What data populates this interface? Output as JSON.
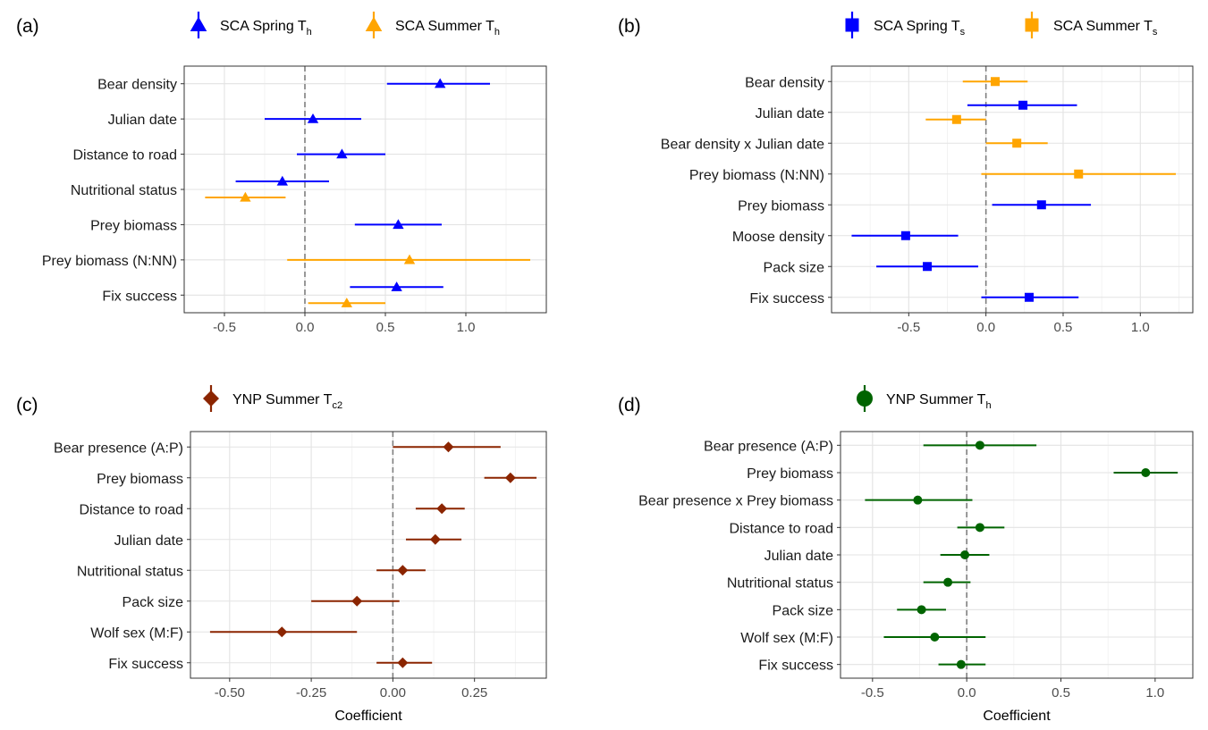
{
  "chart_data": [
    {
      "panel": "(a)",
      "type": "scatter",
      "legend_position": "top",
      "legend": [
        {
          "name": "SCA Spring T",
          "sub": "h",
          "color": "#0000FF",
          "marker": "triangle"
        },
        {
          "name": "SCA Summer T",
          "sub": "h",
          "color": "#FFA500",
          "marker": "triangle"
        }
      ],
      "categories": [
        "Bear density",
        "Julian date",
        "Distance to road",
        "Nutritional status",
        "Prey biomass",
        "Prey biomass (N:NN)",
        "Fix success"
      ],
      "xlim": [
        -0.75,
        1.5
      ],
      "xticks": [
        -0.5,
        0.0,
        0.5,
        1.0
      ],
      "xtick_labels": [
        "-0.5",
        "0.0",
        "0.5",
        "1.0"
      ],
      "xlabel": "",
      "grid": true,
      "zero_line": true,
      "points": [
        {
          "category": "Bear density",
          "series": 0,
          "estimate": 0.84,
          "lower": 0.51,
          "upper": 1.15
        },
        {
          "category": "Julian date",
          "series": 0,
          "estimate": 0.05,
          "lower": -0.25,
          "upper": 0.35
        },
        {
          "category": "Distance to road",
          "series": 0,
          "estimate": 0.23,
          "lower": -0.05,
          "upper": 0.5
        },
        {
          "category": "Nutritional status",
          "series": 0,
          "estimate": -0.14,
          "lower": -0.43,
          "upper": 0.15
        },
        {
          "category": "Nutritional status",
          "series": 1,
          "estimate": -0.37,
          "lower": -0.62,
          "upper": -0.12
        },
        {
          "category": "Prey biomass",
          "series": 0,
          "estimate": 0.58,
          "lower": 0.31,
          "upper": 0.85
        },
        {
          "category": "Prey biomass (N:NN)",
          "series": 1,
          "estimate": 0.65,
          "lower": -0.11,
          "upper": 1.4
        },
        {
          "category": "Fix success",
          "series": 0,
          "estimate": 0.57,
          "lower": 0.28,
          "upper": 0.86
        },
        {
          "category": "Fix success",
          "series": 1,
          "estimate": 0.26,
          "lower": 0.02,
          "upper": 0.5
        }
      ]
    },
    {
      "panel": "(b)",
      "type": "scatter",
      "legend_position": "top",
      "legend": [
        {
          "name": "SCA Spring T",
          "sub": "s",
          "color": "#0000FF",
          "marker": "square"
        },
        {
          "name": "SCA Summer T",
          "sub": "s",
          "color": "#FFA500",
          "marker": "square"
        }
      ],
      "categories": [
        "Bear density",
        "Julian date",
        "Bear density x Julian date",
        "Prey biomass (N:NN)",
        "Prey biomass",
        "Moose density",
        "Pack size",
        "Fix success"
      ],
      "xlim": [
        -1.0,
        1.34
      ],
      "xticks": [
        -0.5,
        0.0,
        0.5,
        1.0
      ],
      "xtick_labels": [
        "-0.5",
        "0.0",
        "0.5",
        "1.0"
      ],
      "xlabel": "",
      "grid": true,
      "zero_line": true,
      "points": [
        {
          "category": "Bear density",
          "series": 1,
          "estimate": 0.06,
          "lower": -0.15,
          "upper": 0.27
        },
        {
          "category": "Julian date",
          "series": 0,
          "estimate": 0.24,
          "lower": -0.12,
          "upper": 0.59
        },
        {
          "category": "Julian date",
          "series": 1,
          "estimate": -0.19,
          "lower": -0.39,
          "upper": 0.0
        },
        {
          "category": "Bear density x Julian date",
          "series": 1,
          "estimate": 0.2,
          "lower": 0.0,
          "upper": 0.4
        },
        {
          "category": "Prey biomass (N:NN)",
          "series": 1,
          "estimate": 0.6,
          "lower": -0.03,
          "upper": 1.23
        },
        {
          "category": "Prey biomass",
          "series": 0,
          "estimate": 0.36,
          "lower": 0.04,
          "upper": 0.68
        },
        {
          "category": "Moose density",
          "series": 0,
          "estimate": -0.52,
          "lower": -0.87,
          "upper": -0.18
        },
        {
          "category": "Pack size",
          "series": 0,
          "estimate": -0.38,
          "lower": -0.71,
          "upper": -0.05
        },
        {
          "category": "Fix success",
          "series": 0,
          "estimate": 0.28,
          "lower": -0.03,
          "upper": 0.6
        }
      ]
    },
    {
      "panel": "(c)",
      "type": "scatter",
      "legend_position": "top",
      "legend": [
        {
          "name": "YNP Summer T",
          "sub": "c2",
          "color": "#8B2500",
          "marker": "diamond"
        }
      ],
      "categories": [
        "Bear presence (A:P)",
        "Prey biomass",
        "Distance to road",
        "Julian date",
        "Nutritional status",
        "Pack size",
        "Wolf sex (M:F)",
        "Fix success"
      ],
      "xlim": [
        -0.62,
        0.47
      ],
      "xticks": [
        -0.5,
        -0.25,
        0.0,
        0.25
      ],
      "xtick_labels": [
        "-0.50",
        "-0.25",
        "0.00",
        "0.25"
      ],
      "xlabel": "Coefficient",
      "grid": true,
      "zero_line": true,
      "points": [
        {
          "category": "Bear presence (A:P)",
          "series": 0,
          "estimate": 0.17,
          "lower": 0.0,
          "upper": 0.33
        },
        {
          "category": "Prey biomass",
          "series": 0,
          "estimate": 0.36,
          "lower": 0.28,
          "upper": 0.44
        },
        {
          "category": "Distance to road",
          "series": 0,
          "estimate": 0.15,
          "lower": 0.07,
          "upper": 0.22
        },
        {
          "category": "Julian date",
          "series": 0,
          "estimate": 0.13,
          "lower": 0.04,
          "upper": 0.21
        },
        {
          "category": "Nutritional status",
          "series": 0,
          "estimate": 0.03,
          "lower": -0.05,
          "upper": 0.1
        },
        {
          "category": "Pack size",
          "series": 0,
          "estimate": -0.11,
          "lower": -0.25,
          "upper": 0.02
        },
        {
          "category": "Wolf sex (M:F)",
          "series": 0,
          "estimate": -0.34,
          "lower": -0.56,
          "upper": -0.11
        },
        {
          "category": "Fix success",
          "series": 0,
          "estimate": 0.03,
          "lower": -0.05,
          "upper": 0.12
        }
      ]
    },
    {
      "panel": "(d)",
      "type": "scatter",
      "legend_position": "top",
      "legend": [
        {
          "name": "YNP Summer T",
          "sub": "h",
          "color": "#006400",
          "marker": "circle"
        }
      ],
      "categories": [
        "Bear presence (A:P)",
        "Prey biomass",
        "Bear presence x Prey biomass",
        "Distance to road",
        "Julian date",
        "Nutritional status",
        "Pack size",
        "Wolf sex (M:F)",
        "Fix success"
      ],
      "xlim": [
        -0.67,
        1.2
      ],
      "xticks": [
        -0.5,
        0.0,
        0.5,
        1.0
      ],
      "xtick_labels": [
        "-0.5",
        "0.0",
        "0.5",
        "1.0"
      ],
      "xlabel": "Coefficient",
      "grid": true,
      "zero_line": true,
      "points": [
        {
          "category": "Bear presence (A:P)",
          "series": 0,
          "estimate": 0.07,
          "lower": -0.23,
          "upper": 0.37
        },
        {
          "category": "Prey biomass",
          "series": 0,
          "estimate": 0.95,
          "lower": 0.78,
          "upper": 1.12
        },
        {
          "category": "Bear presence x Prey biomass",
          "series": 0,
          "estimate": -0.26,
          "lower": -0.54,
          "upper": 0.03
        },
        {
          "category": "Distance to road",
          "series": 0,
          "estimate": 0.07,
          "lower": -0.05,
          "upper": 0.2
        },
        {
          "category": "Julian date",
          "series": 0,
          "estimate": -0.01,
          "lower": -0.14,
          "upper": 0.12
        },
        {
          "category": "Nutritional status",
          "series": 0,
          "estimate": -0.1,
          "lower": -0.23,
          "upper": 0.02
        },
        {
          "category": "Pack size",
          "series": 0,
          "estimate": -0.24,
          "lower": -0.37,
          "upper": -0.11
        },
        {
          "category": "Wolf sex (M:F)",
          "series": 0,
          "estimate": -0.17,
          "lower": -0.44,
          "upper": 0.1
        },
        {
          "category": "Fix success",
          "series": 0,
          "estimate": -0.03,
          "lower": -0.15,
          "upper": 0.1
        }
      ]
    }
  ]
}
